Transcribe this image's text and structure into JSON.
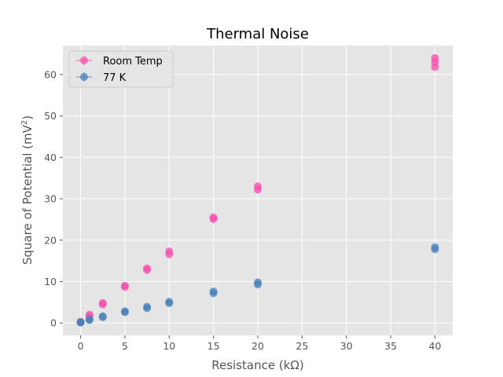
{
  "chart_data": {
    "type": "scatter",
    "title": "Thermal Noise",
    "xlabel": "Resistance (kΩ)",
    "ylabel_main": "Square of Potential (mV",
    "ylabel_sup": "2",
    "ylabel_end": ")",
    "xlim": [
      -2,
      42
    ],
    "ylim": [
      -3,
      67
    ],
    "xticks": [
      0,
      5,
      10,
      15,
      20,
      25,
      30,
      35,
      40
    ],
    "yticks": [
      0,
      10,
      20,
      30,
      40,
      50,
      60
    ],
    "grid": true,
    "legend_position": "top-left",
    "series": [
      {
        "name": "Room Temp",
        "color": "#f74faf",
        "points": [
          [
            0,
            0.3
          ],
          [
            0,
            0.2
          ],
          [
            1,
            2.0
          ],
          [
            1,
            1.6
          ],
          [
            2.5,
            4.8
          ],
          [
            2.5,
            4.5
          ],
          [
            5,
            9.0
          ],
          [
            5,
            8.7
          ],
          [
            7.5,
            13.2
          ],
          [
            7.5,
            12.8
          ],
          [
            10,
            17.3
          ],
          [
            10,
            16.6
          ],
          [
            15,
            25.5
          ],
          [
            15,
            25.1
          ],
          [
            20,
            33.0
          ],
          [
            20,
            32.2
          ],
          [
            40,
            64.0
          ],
          [
            40,
            63.0
          ],
          [
            40,
            61.8
          ]
        ]
      },
      {
        "name": "77 K",
        "color": "#4a82ba",
        "points": [
          [
            0,
            0.2
          ],
          [
            0,
            0.1
          ],
          [
            1,
            0.9
          ],
          [
            1,
            0.7
          ],
          [
            2.5,
            1.6
          ],
          [
            2.5,
            1.4
          ],
          [
            5,
            2.8
          ],
          [
            5,
            2.6
          ],
          [
            7.5,
            3.9
          ],
          [
            7.5,
            3.6
          ],
          [
            10,
            5.1
          ],
          [
            10,
            4.8
          ],
          [
            15,
            7.6
          ],
          [
            15,
            7.2
          ],
          [
            20,
            9.8
          ],
          [
            20,
            9.3
          ],
          [
            40,
            18.3
          ],
          [
            40,
            17.8
          ]
        ]
      }
    ]
  }
}
